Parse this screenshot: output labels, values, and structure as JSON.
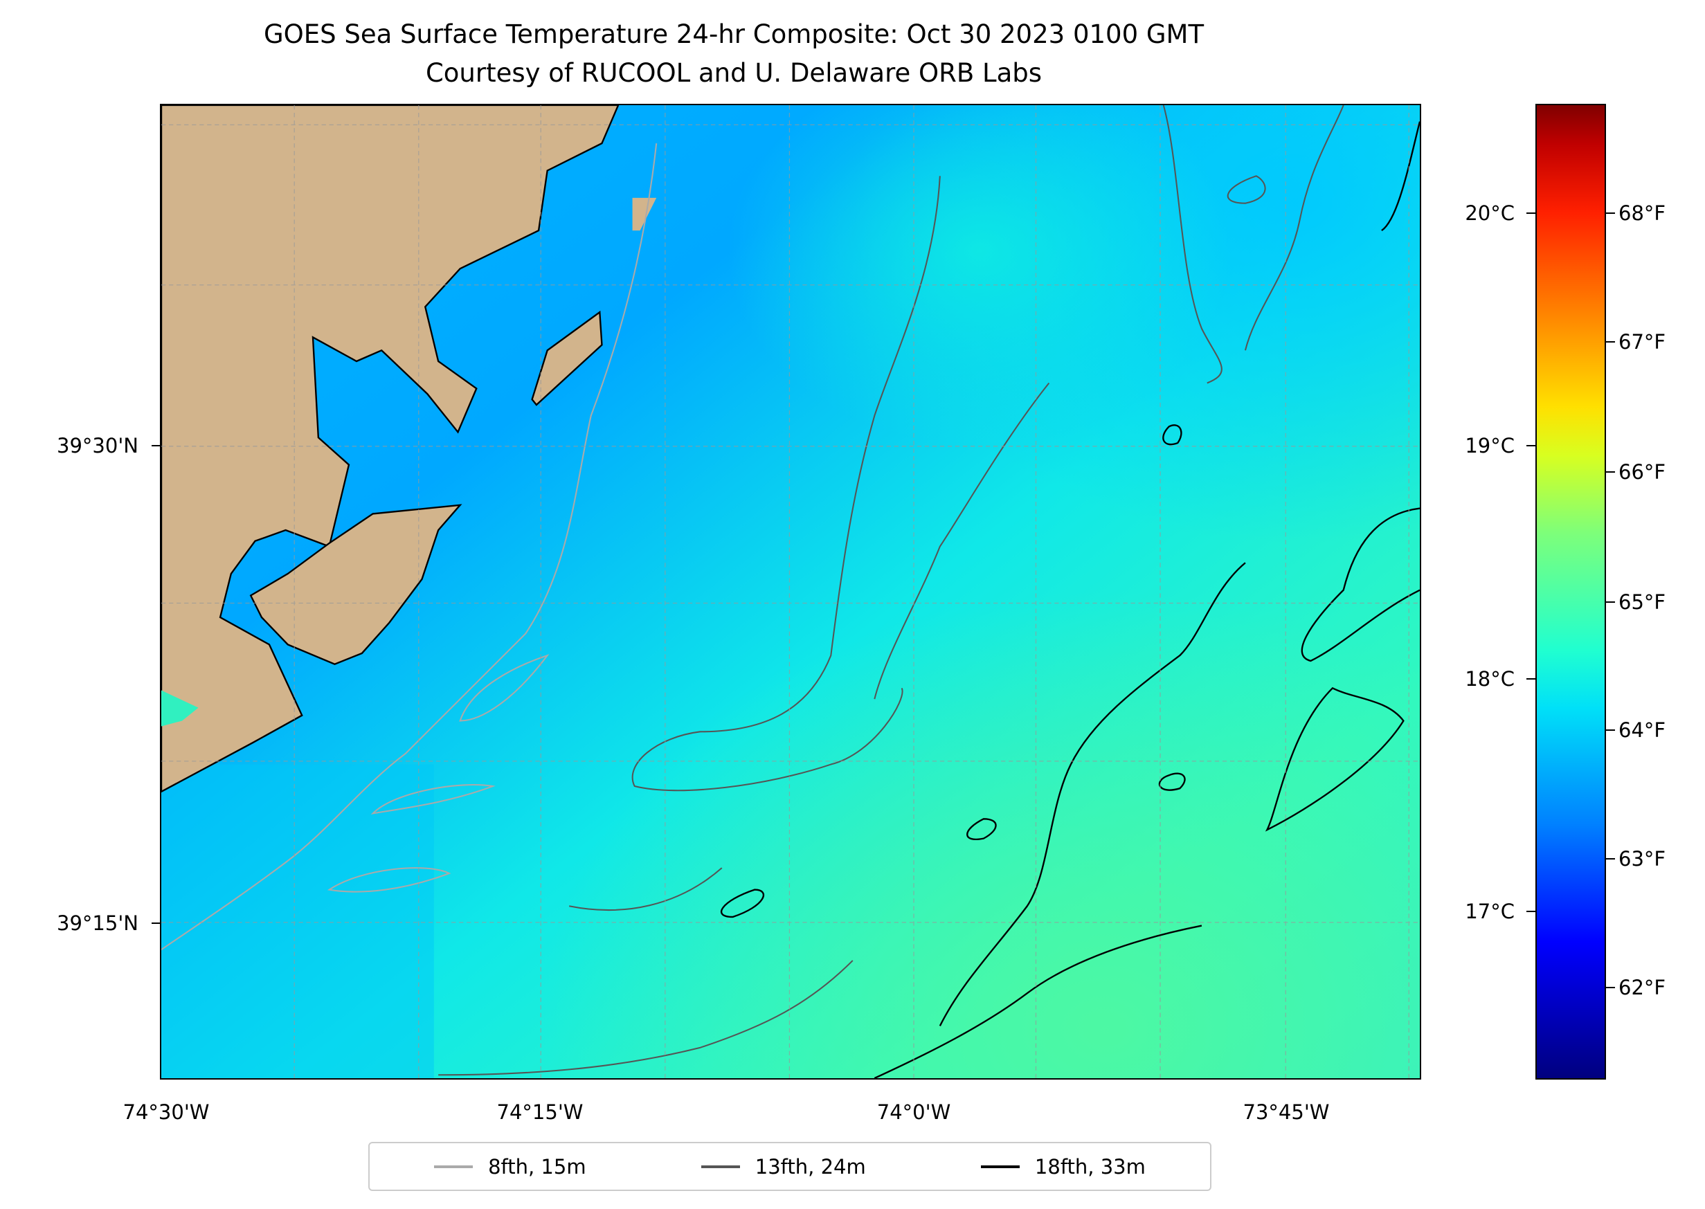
{
  "chart_data": {
    "type": "heatmap",
    "title": "GOES Sea Surface Temperature 24-hr Composite: Oct 30 2023 0100 GMT",
    "subtitle": "Courtesy of RUCOOL and U. Delaware ORB Labs",
    "lat_ticks": [
      "39°30'N",
      "39°15'N"
    ],
    "lon_ticks": [
      "74°30'W",
      "74°15'W",
      "74°0'W",
      "73°45'W"
    ],
    "colorbar": {
      "celsius_ticks": [
        "20°C",
        "19°C",
        "18°C",
        "17°C"
      ],
      "fahrenheit_ticks": [
        "68°F",
        "67°F",
        "66°F",
        "65°F",
        "64°F",
        "63°F",
        "62°F"
      ],
      "range_f": [
        61.3,
        68.85
      ],
      "range_c": [
        16.27,
        20.47
      ],
      "colormap": "jet"
    },
    "value_summary_f": {
      "nearshore": 63.5,
      "offshore_north": 63.9,
      "south_east": 64.7
    },
    "land_color": "#d2b48c",
    "legend": [
      {
        "label": "8fth, 15m",
        "color": "#aaaaaa"
      },
      {
        "label": "13fth, 24m",
        "color": "#555555"
      },
      {
        "label": "18fth, 33m",
        "color": "#000000"
      }
    ],
    "legend_placement": "bottom-center"
  }
}
